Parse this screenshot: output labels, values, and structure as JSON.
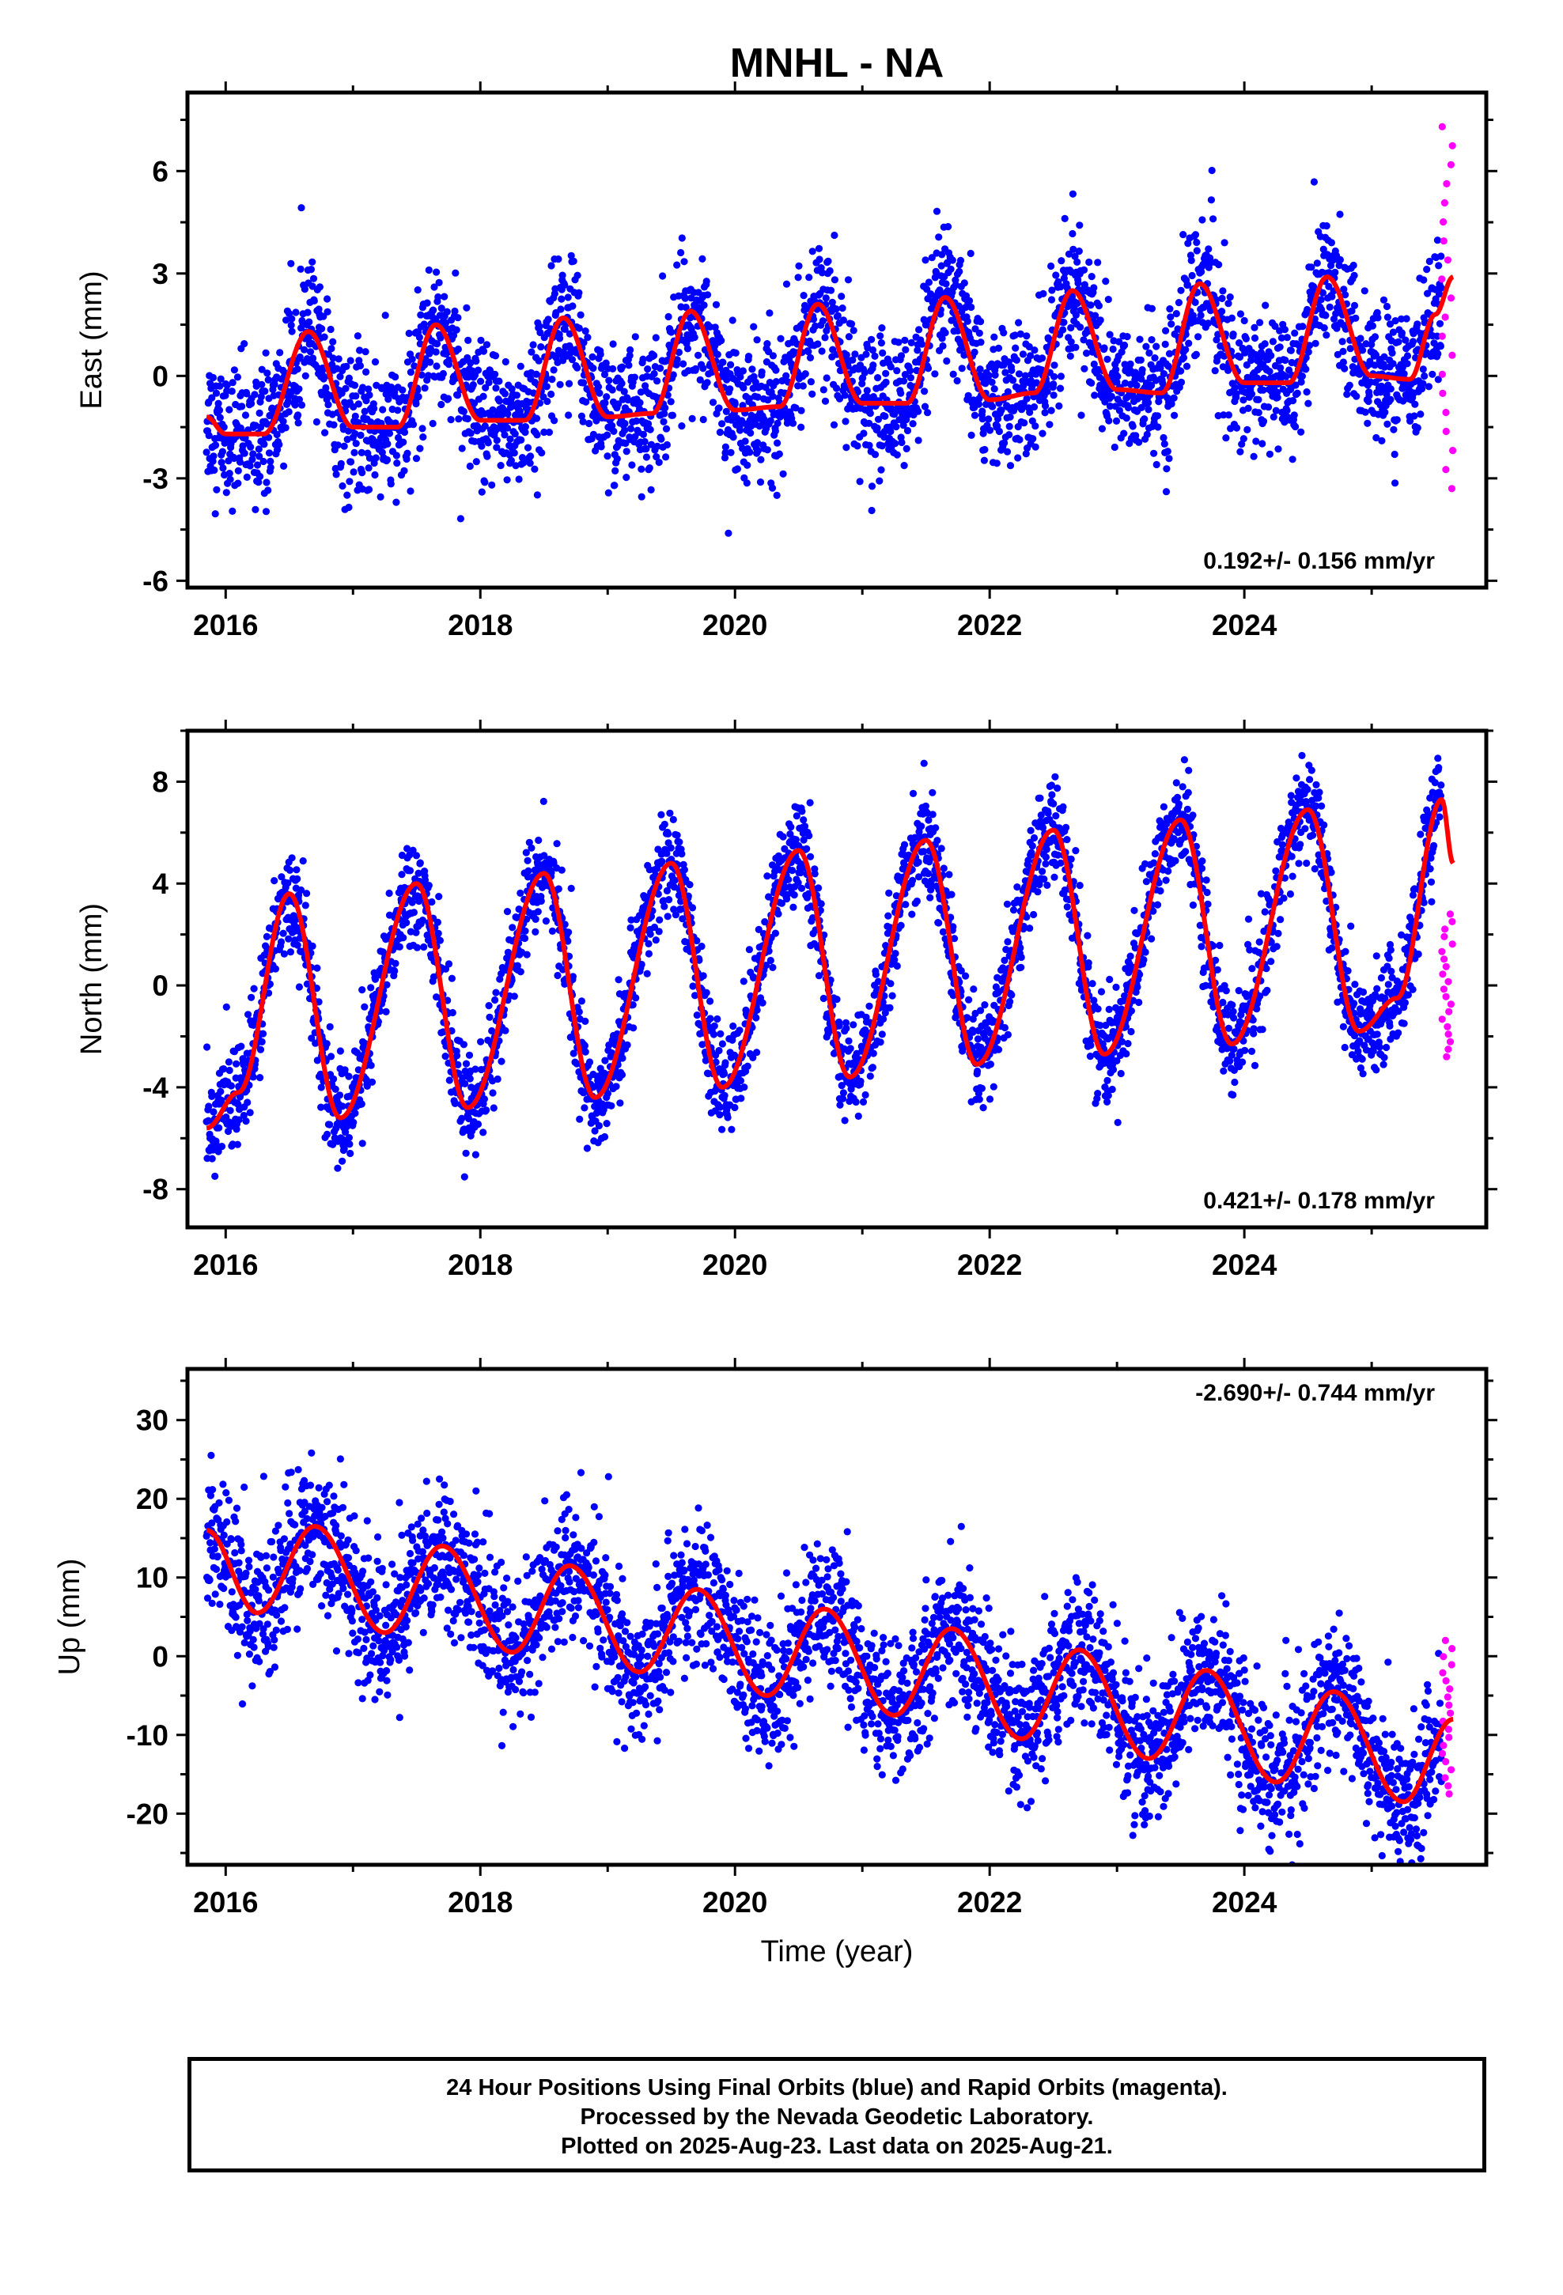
{
  "title": "MNHL - NA",
  "xlabel": "Time (year)",
  "colors": {
    "final_orbits": "#0000ff",
    "rapid_orbits": "#ff00ff",
    "fit": "#ff0000",
    "frame": "#000000"
  },
  "caption": {
    "line1": "24 Hour Positions Using Final Orbits (blue) and Rapid Orbits (magenta).",
    "line2": "Processed by the Nevada Geodetic Laboratory.",
    "line3": "Plotted on 2025-Aug-23. Last data on 2025-Aug-21."
  },
  "chart_data": [
    {
      "type": "scatter",
      "ylabel": "East (mm)",
      "rate": "0.192+/- 0.156 mm/yr",
      "rate_position": "bottom-right",
      "xlim": [
        2015.7,
        2025.9
      ],
      "ylim": [
        -6.2,
        8.3
      ],
      "xticks": [
        "2016",
        "2018",
        "2020",
        "2022",
        "2024"
      ],
      "yticks": [
        "-6",
        "-3",
        "0",
        "3",
        "6"
      ],
      "grid": false,
      "series": [
        {
          "role": "final_orbits",
          "color": "#0000ff",
          "time_span": [
            2015.85,
            2025.55
          ],
          "trend_mm_per_yr": 0.192,
          "annual_amplitude_mm": 1.6,
          "scatter_mm": 1.0
        },
        {
          "role": "rapid_orbits",
          "color": "#ff00ff",
          "time_span": [
            2025.55,
            2025.64
          ],
          "y_range_mm": [
            -3.3,
            7.3
          ]
        },
        {
          "role": "fit",
          "color": "#ff0000",
          "x": [
            2015.85,
            2016.0,
            2016.3,
            2016.65,
            2017.0,
            2017.35,
            2017.65,
            2018.0,
            2018.35,
            2018.65,
            2019.0,
            2019.35,
            2019.65,
            2020.0,
            2020.35,
            2020.65,
            2021.0,
            2021.35,
            2021.65,
            2022.0,
            2022.35,
            2022.65,
            2023.0,
            2023.35,
            2023.65,
            2024.0,
            2024.35,
            2024.65,
            2025.0,
            2025.3,
            2025.5,
            2025.64
          ],
          "y": [
            -1.2,
            -1.7,
            -1.7,
            1.3,
            -1.5,
            -1.5,
            1.5,
            -1.3,
            -1.3,
            1.7,
            -1.2,
            -1.1,
            1.9,
            -1.0,
            -0.9,
            2.1,
            -0.8,
            -0.8,
            2.3,
            -0.7,
            -0.5,
            2.5,
            -0.4,
            -0.5,
            2.7,
            -0.2,
            -0.2,
            2.9,
            0.0,
            -0.1,
            1.8,
            2.9
          ]
        }
      ]
    },
    {
      "type": "scatter",
      "ylabel": "North (mm)",
      "rate": "0.421+/- 0.178 mm/yr",
      "rate_position": "bottom-right",
      "xlim": [
        2015.7,
        2025.9
      ],
      "ylim": [
        -9.5,
        10.0
      ],
      "xticks": [
        "2016",
        "2018",
        "2020",
        "2022",
        "2024"
      ],
      "yticks": [
        "-8",
        "-4",
        "0",
        "4",
        "8"
      ],
      "grid": false,
      "series": [
        {
          "role": "final_orbits",
          "color": "#0000ff",
          "time_span": [
            2015.85,
            2025.55
          ],
          "trend_mm_per_yr": 0.421,
          "annual_amplitude_mm": 4.5,
          "scatter_mm": 1.0
        },
        {
          "role": "rapid_orbits",
          "color": "#ff00ff",
          "time_span": [
            2025.55,
            2025.64
          ],
          "y_range_mm": [
            -2.8,
            2.8
          ]
        },
        {
          "role": "fit",
          "color": "#ff0000",
          "x": [
            2015.85,
            2016.1,
            2016.5,
            2016.9,
            2017.5,
            2017.9,
            2018.5,
            2018.9,
            2019.5,
            2019.9,
            2020.5,
            2020.9,
            2021.5,
            2021.9,
            2022.5,
            2022.9,
            2023.5,
            2023.9,
            2024.5,
            2024.9,
            2025.2,
            2025.55,
            2025.64
          ],
          "y": [
            -5.6,
            -4.2,
            3.6,
            -5.2,
            4.0,
            -4.8,
            4.4,
            -4.4,
            4.8,
            -4.0,
            5.3,
            -3.6,
            5.7,
            -3.1,
            6.1,
            -2.7,
            6.5,
            -2.3,
            6.9,
            -1.8,
            -0.5,
            7.3,
            4.8
          ]
        }
      ]
    },
    {
      "type": "scatter",
      "ylabel": "Up (mm)",
      "rate": "-2.690+/- 0.744 mm/yr",
      "rate_position": "top-right",
      "xlim": [
        2015.7,
        2025.9
      ],
      "ylim": [
        -26.5,
        36.5
      ],
      "xticks": [
        "2016",
        "2018",
        "2020",
        "2022",
        "2024"
      ],
      "yticks": [
        "-20",
        "-10",
        "0",
        "10",
        "20",
        "30"
      ],
      "grid": false,
      "series": [
        {
          "role": "final_orbits",
          "color": "#0000ff",
          "time_span": [
            2015.85,
            2025.55
          ],
          "trend_mm_per_yr": -2.69,
          "annual_amplitude_mm": 5.5,
          "scatter_mm": 4.5
        },
        {
          "role": "rapid_orbits",
          "color": "#ff00ff",
          "time_span": [
            2025.55,
            2025.64
          ],
          "y_range_mm": [
            -17.5,
            2.0
          ]
        },
        {
          "role": "fit",
          "color": "#ff0000",
          "x": [
            2015.85,
            2016.25,
            2016.7,
            2017.25,
            2017.7,
            2018.25,
            2018.7,
            2019.25,
            2019.7,
            2020.25,
            2020.7,
            2021.25,
            2021.7,
            2022.25,
            2022.7,
            2023.25,
            2023.7,
            2024.25,
            2024.7,
            2025.25,
            2025.64
          ],
          "y": [
            16.0,
            5.5,
            16.5,
            3.0,
            14.0,
            0.5,
            11.5,
            -2.0,
            8.5,
            -5.0,
            6.0,
            -7.5,
            3.5,
            -10.5,
            0.8,
            -13.0,
            -1.8,
            -16.0,
            -4.5,
            -18.5,
            -8.0
          ]
        }
      ]
    }
  ]
}
